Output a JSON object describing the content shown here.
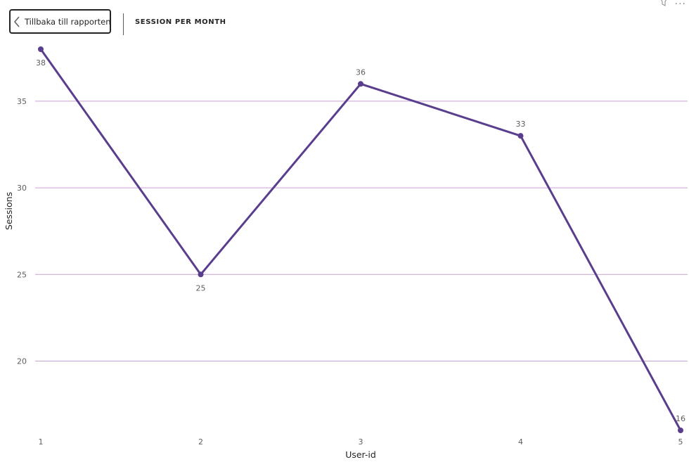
{
  "header": {
    "back_button_label": "Tillbaka till rapporten",
    "visual_title": "SESSION PER MONTH",
    "more_options_label": "..."
  },
  "colors": {
    "line": "#5a3e8e",
    "gridline": "#c9a0d3",
    "text": "#252423",
    "tick_text": "#605e5c"
  },
  "chart_data": {
    "type": "line",
    "title": "SESSION PER MONTH",
    "xlabel": "User-id",
    "ylabel": "Sessions",
    "categories": [
      "1",
      "2",
      "3",
      "4",
      "5"
    ],
    "series": [
      {
        "values": [
          38,
          25,
          36,
          33,
          16
        ]
      }
    ],
    "data_labels": [
      "38",
      "25",
      "36",
      "33",
      "16"
    ],
    "yticks": [
      20,
      25,
      30,
      35
    ],
    "ytick_labels": [
      "20",
      "25",
      "30",
      "35"
    ],
    "ylim": [
      16,
      38
    ],
    "grid": "horizontal",
    "legend": "none"
  }
}
